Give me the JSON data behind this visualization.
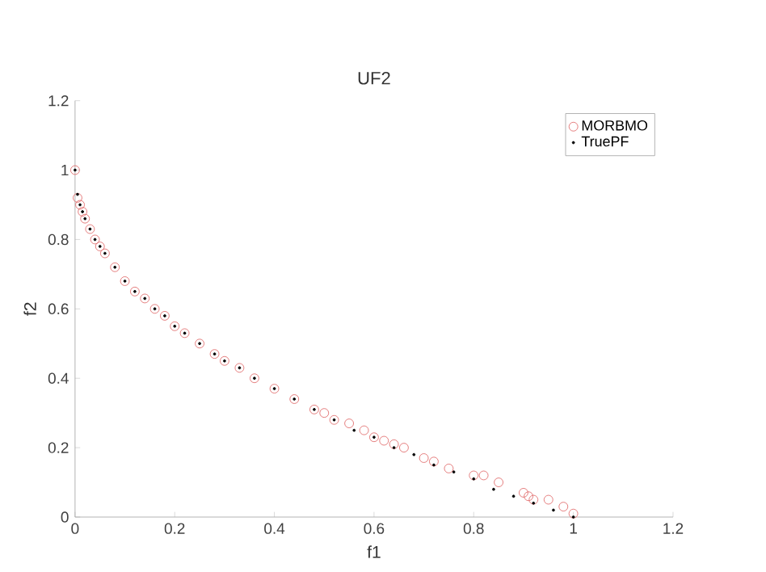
{
  "chart_data": {
    "type": "scatter",
    "title": "UF2",
    "xlabel": "f1",
    "ylabel": "f2",
    "xlim": [
      0,
      1.2
    ],
    "ylim": [
      0,
      1.2
    ],
    "xticks": [
      0,
      0.2,
      0.4,
      0.6,
      0.8,
      1,
      1.2
    ],
    "yticks": [
      0,
      0.2,
      0.4,
      0.6,
      0.8,
      1,
      1.2
    ],
    "legend": "top right",
    "grid": false,
    "series": [
      {
        "name": "MORBMO",
        "color": "#e06666",
        "marker": "circle",
        "x": [
          0,
          0.005,
          0.01,
          0.015,
          0.02,
          0.03,
          0.04,
          0.05,
          0.06,
          0.08,
          0.1,
          0.12,
          0.14,
          0.16,
          0.18,
          0.2,
          0.22,
          0.25,
          0.28,
          0.3,
          0.33,
          0.36,
          0.4,
          0.44,
          0.48,
          0.5,
          0.52,
          0.55,
          0.58,
          0.6,
          0.62,
          0.64,
          0.66,
          0.7,
          0.72,
          0.75,
          0.8,
          0.82,
          0.85,
          0.9,
          0.91,
          0.92,
          0.95,
          0.98,
          1.0
        ],
        "values": [
          1,
          0.92,
          0.9,
          0.88,
          0.86,
          0.83,
          0.8,
          0.78,
          0.76,
          0.72,
          0.68,
          0.65,
          0.63,
          0.6,
          0.58,
          0.55,
          0.53,
          0.5,
          0.47,
          0.45,
          0.43,
          0.4,
          0.37,
          0.34,
          0.31,
          0.3,
          0.28,
          0.27,
          0.25,
          0.23,
          0.22,
          0.21,
          0.2,
          0.17,
          0.16,
          0.14,
          0.12,
          0.12,
          0.1,
          0.07,
          0.06,
          0.05,
          0.05,
          0.03,
          0.01
        ]
      },
      {
        "name": "TruePF",
        "color": "#000000",
        "marker": "dot",
        "x": [
          0,
          0.005,
          0.01,
          0.015,
          0.02,
          0.03,
          0.04,
          0.05,
          0.06,
          0.08,
          0.1,
          0.12,
          0.14,
          0.16,
          0.18,
          0.2,
          0.22,
          0.25,
          0.28,
          0.3,
          0.33,
          0.36,
          0.4,
          0.44,
          0.48,
          0.52,
          0.56,
          0.6,
          0.64,
          0.68,
          0.72,
          0.76,
          0.8,
          0.84,
          0.88,
          0.92,
          0.96,
          1.0
        ],
        "values": [
          1,
          0.93,
          0.9,
          0.88,
          0.86,
          0.83,
          0.8,
          0.78,
          0.76,
          0.72,
          0.68,
          0.65,
          0.63,
          0.6,
          0.58,
          0.55,
          0.53,
          0.5,
          0.47,
          0.45,
          0.43,
          0.4,
          0.37,
          0.34,
          0.31,
          0.28,
          0.25,
          0.23,
          0.2,
          0.18,
          0.15,
          0.13,
          0.11,
          0.08,
          0.06,
          0.04,
          0.02,
          0
        ]
      }
    ]
  }
}
